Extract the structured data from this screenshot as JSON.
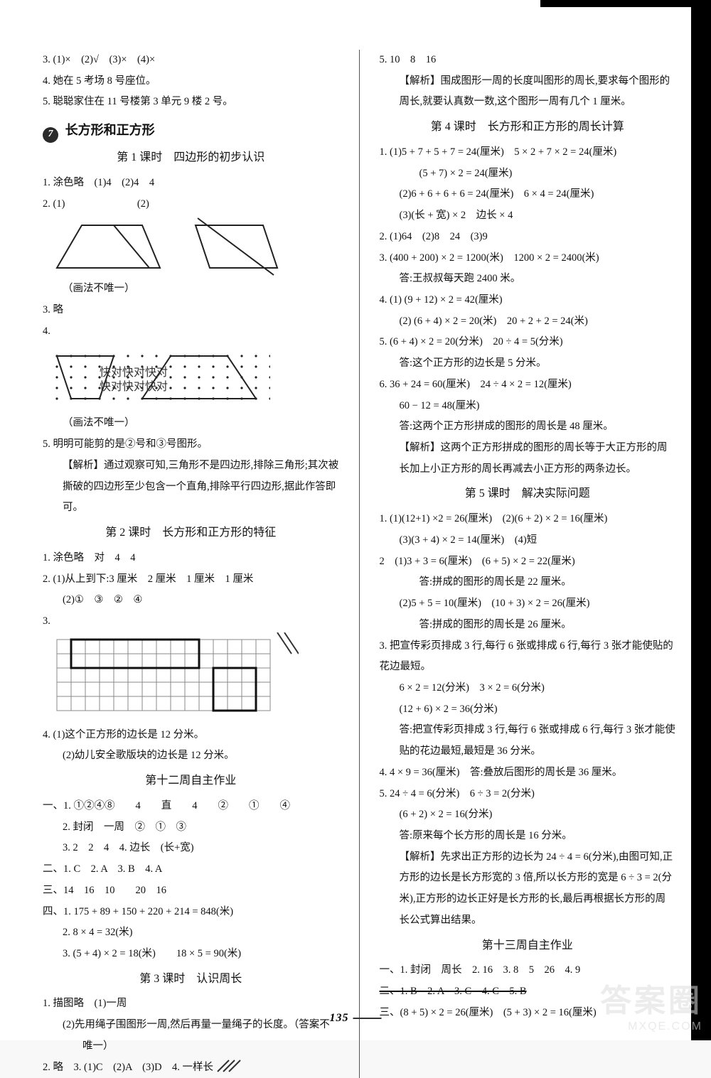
{
  "left": {
    "l3": "3.  (1)×　(2)√　(3)×　(4)×",
    "l4": "4.  她在 5 考场 8 号座位。",
    "l5": "5.  聪聪家住在 11 号楼第 3 单元 9 楼 2 号。",
    "chapter_num": "7",
    "chapter_title": "长方形和正方形",
    "lesson1": "第 1 课时　四边形的初步认识",
    "q1": "1.  涂色略　(1)4　(2)4　4",
    "q2": "2.  (1)　　　　　　　(2)",
    "note1": "（画法不唯一）",
    "q3": "3.  略",
    "q4": "4.",
    "wm_text": "快对快对快对\n快对快对快对",
    "note2": "（画法不唯一）",
    "q5": "5.  明明可能剪的是②号和③号图形。",
    "analysis5": "【解析】通过观察可知,三角形不是四边形,排除三角形;其次被撕破的四边形至少包含一个直角,排除平行四边形,据此作答即可。",
    "lesson2": "第 2 课时　长方形和正方形的特征",
    "l2q1": "1.  涂色略　对　4　4",
    "l2q2a": "2.  (1)从上到下:3 厘米　2 厘米　1 厘米　1 厘米",
    "l2q2b": "(2)①　③　②　④",
    "l2q3": "3.",
    "l2q4a": "4.  (1)这个正方形的边长是 12 分米。",
    "l2q4b": "(2)幼儿安全歌版块的边长是 12 分米。",
    "week12": "第十二周自主作业",
    "w12_1_1": "一、1.  ①②④⑧　　4　　直　　4　　②　　①　　④",
    "w12_1_2": "2.  封闭　一周　②　①　③",
    "w12_1_3": "3.  2　2　4　4.  边长　(长+宽)",
    "w12_2": "二、1.  C　2.  A　3.  B　4.  A",
    "w12_3": "三、14　16　10　　20　16",
    "w12_4_1": "四、1.  175 + 89 + 150 + 220 + 214 = 848(米)",
    "w12_4_2": "2.  8 × 4 = 32(米)",
    "w12_4_3": "3.  (5 + 4) × 2 = 18(米)　　18 × 5 = 90(米)",
    "lesson3": "第 3 课时　认识周长",
    "l3q1a": "1.  描图略　(1)一周",
    "l3q1b": "(2)先用绳子围图形一周,然后再量一量绳子的长度。（答案不",
    "l3q1c": "唯一）",
    "l3q2": "2.  略　3.  (1)C　(2)A　(3)D　4.  一样长"
  },
  "right": {
    "r5": "5.  10　8　16",
    "r5a": "【解析】围成图形一周的长度叫图形的周长,要求每个图形的周长,就要认真数一数,这个图形一周有几个 1 厘米。",
    "lesson4": "第 4 课时　长方形和正方形的周长计算",
    "l4q1a": "1.  (1)5 + 7 + 5 + 7 = 24(厘米)　5 × 2 + 7 × 2 = 24(厘米)",
    "l4q1b": "(5 + 7) × 2 = 24(厘米)",
    "l4q1c": "(2)6 + 6 + 6 + 6 = 24(厘米)　6 × 4 = 24(厘米)",
    "l4q1d": "(3)(长 + 宽) × 2　边长 × 4",
    "l4q2": "2.  (1)64　(2)8　24　(3)9",
    "l4q3a": "3.  (400 + 200) × 2 = 1200(米)　1200 × 2 = 2400(米)",
    "l4q3b": "答:王叔叔每天跑 2400 米。",
    "l4q4a": "4.  (1) (9 + 12) × 2 = 42(厘米)",
    "l4q4b": "(2) (6 + 4) × 2 = 20(米)　20 + 2 + 2 = 24(米)",
    "l4q5a": "5.  (6 + 4) × 2 = 20(分米)　20 ÷ 4 = 5(分米)",
    "l4q5b": "答:这个正方形的边长是 5 分米。",
    "l4q6a": "6.  36 + 24 = 60(厘米)　24 ÷ 4 × 2 = 12(厘米)",
    "l4q6b": "60 − 12 = 48(厘米)",
    "l4q6c": "答:这两个正方形拼成的图形的周长是 48 厘米。",
    "l4q6d": "【解析】这两个正方形拼成的图形的周长等于大正方形的周长加上小正方形的周长再减去小正方形的两条边长。",
    "lesson5": "第 5 课时　解决实际问题",
    "l5q1a": "1.  (1)(12+1) ×2 = 26(厘米)　(2)(6 + 2) × 2 = 16(厘米)",
    "l5q1b": "(3)(3 + 4) × 2 = 14(厘米)　(4)短",
    "l5q2a": "2　(1)3 + 3 = 6(厘米)　(6 + 5) × 2 = 22(厘米)",
    "l5q2b": "答:拼成的图形的周长是 22 厘米。",
    "l5q2c": "(2)5 + 5 = 10(厘米)　(10 + 3) × 2 = 26(厘米)",
    "l5q2d": "答:拼成的图形的周长是 26 厘米。",
    "l5q3a": "3.  把宣传彩页排成 3 行,每行 6 张或排成 6 行,每行 3 张才能使贴的花边最短。",
    "l5q3b": "6 × 2 = 12(分米)　3 × 2 = 6(分米)",
    "l5q3c": "(12 + 6) × 2 = 36(分米)",
    "l5q3d": "答:把宣传彩页排成 3 行,每行 6 张或排成 6 行,每行 3 张才能使贴的花边最短,最短是 36 分米。",
    "l5q4": "4.  4 × 9 = 36(厘米)　答:叠放后图形的周长是 36 厘米。",
    "l5q5a": "5.  24 ÷ 4 = 6(分米)　6 ÷ 3 = 2(分米)",
    "l5q5b": "(6 + 2) × 2 = 16(分米)",
    "l5q5c": "答:原来每个长方形的周长是 16 分米。",
    "l5q5d": "【解析】先求出正方形的边长为 24 ÷ 4 = 6(分米),由图可知,正方形的边长是长方形宽的 3 倍,所以长方形的宽是 6 ÷ 3 = 2(分米),正方形的边长正好是长方形的长,最后再根据长方形的周长公式算出结果。",
    "week13": "第十三周自主作业",
    "w13_1": "一、1.  封闭　周长　2.  16　3.  8　5　26　4.  9",
    "w13_2": "二、1.  B　2.  A　3.  C　4.  C　5.  B",
    "w13_3": "三、(8 + 5) × 2 = 26(厘米)　(5 + 3) × 2 = 16(厘米)"
  },
  "page_number": "135",
  "watermark_big": "答案圈",
  "watermark_small": "MXQE.COM",
  "svg": {
    "trapezoid_stroke": "#222",
    "grid_cell": 20,
    "dot_color": "#222"
  }
}
